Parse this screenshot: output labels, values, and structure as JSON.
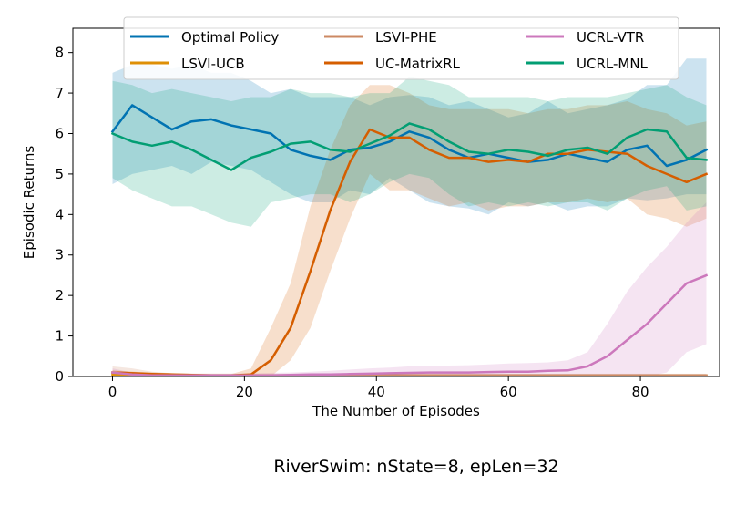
{
  "chart_data": {
    "type": "line",
    "title": "",
    "caption": "RiverSwim: nState=8, epLen=32",
    "xlabel": "The Number of Episodes",
    "ylabel": "Episodic Returns",
    "xlim": [
      -6,
      92
    ],
    "ylim": [
      0,
      8.6
    ],
    "xticks": [
      0,
      20,
      40,
      60,
      80
    ],
    "yticks": [
      0,
      1,
      2,
      3,
      4,
      5,
      6,
      7,
      8
    ],
    "x_start": 0,
    "x_step": 3,
    "legend_position": "top-center",
    "series": [
      {
        "name": "Optimal Policy",
        "color": "#0173b2",
        "values": [
          6.05,
          6.7,
          6.4,
          6.1,
          6.3,
          6.35,
          6.2,
          6.1,
          6.0,
          5.6,
          5.45,
          5.35,
          5.6,
          5.65,
          5.8,
          6.05,
          5.9,
          5.6,
          5.4,
          5.5,
          5.4,
          5.3,
          5.35,
          5.5,
          5.4,
          5.3,
          5.6,
          5.7,
          5.2,
          5.35,
          5.6
        ],
        "upper": [
          7.5,
          7.7,
          7.7,
          7.6,
          7.7,
          7.5,
          7.5,
          7.3,
          7.0,
          7.1,
          6.9,
          6.9,
          6.9,
          6.7,
          6.9,
          6.95,
          6.9,
          6.7,
          6.8,
          6.6,
          6.4,
          6.5,
          6.8,
          6.5,
          6.6,
          6.7,
          6.85,
          7.2,
          7.2,
          7.85,
          7.85
        ],
        "lower": [
          4.75,
          5.0,
          5.1,
          5.2,
          5.0,
          5.3,
          5.2,
          5.1,
          4.8,
          4.5,
          4.3,
          4.3,
          4.6,
          4.5,
          4.9,
          4.6,
          4.3,
          4.2,
          4.15,
          4.0,
          4.3,
          4.2,
          4.3,
          4.1,
          4.2,
          4.2,
          4.4,
          4.35,
          4.4,
          4.5,
          4.5
        ]
      },
      {
        "name": "LSVI-UCB",
        "color": "#de8f05",
        "values": [
          0.05,
          0.04,
          0.04,
          0.03,
          0.03,
          0.03,
          0.03,
          0.03,
          0.03,
          0.03,
          0.03,
          0.03,
          0.03,
          0.03,
          0.03,
          0.03,
          0.03,
          0.03,
          0.03,
          0.03,
          0.03,
          0.03,
          0.03,
          0.03,
          0.03,
          0.03,
          0.03,
          0.03,
          0.03,
          0.03,
          0.03
        ],
        "upper": [
          0.15,
          0.12,
          0.1,
          0.08,
          0.07,
          0.07,
          0.07,
          0.06,
          0.06,
          0.06,
          0.06,
          0.06,
          0.06,
          0.06,
          0.06,
          0.06,
          0.06,
          0.06,
          0.06,
          0.06,
          0.06,
          0.06,
          0.06,
          0.06,
          0.06,
          0.06,
          0.06,
          0.06,
          0.06,
          0.06,
          0.06
        ],
        "lower": [
          0,
          0,
          0,
          0,
          0,
          0,
          0,
          0,
          0,
          0,
          0,
          0,
          0,
          0,
          0,
          0,
          0,
          0,
          0,
          0,
          0,
          0,
          0,
          0,
          0,
          0,
          0,
          0,
          0,
          0,
          0
        ]
      },
      {
        "name": "LSVI-PHE",
        "color": "#cc8963",
        "values": [
          0.1,
          0.08,
          0.05,
          0.04,
          0.03,
          0.03,
          0.03,
          0.03,
          0.03,
          0.03,
          0.03,
          0.03,
          0.03,
          0.03,
          0.03,
          0.03,
          0.03,
          0.03,
          0.03,
          0.03,
          0.03,
          0.03,
          0.03,
          0.03,
          0.03,
          0.03,
          0.03,
          0.03,
          0.03,
          0.03,
          0.03
        ],
        "upper": [
          0.25,
          0.2,
          0.12,
          0.08,
          0.07,
          0.07,
          0.07,
          0.07,
          0.07,
          0.07,
          0.07,
          0.07,
          0.07,
          0.07,
          0.07,
          0.07,
          0.07,
          0.07,
          0.07,
          0.07,
          0.07,
          0.07,
          0.07,
          0.07,
          0.07,
          0.07,
          0.07,
          0.07,
          0.07,
          0.07,
          0.07
        ],
        "lower": [
          0,
          0,
          0,
          0,
          0,
          0,
          0,
          0,
          0,
          0,
          0,
          0,
          0,
          0,
          0,
          0,
          0,
          0,
          0,
          0,
          0,
          0,
          0,
          0,
          0,
          0,
          0,
          0,
          0,
          0,
          0
        ]
      },
      {
        "name": "UC-MatrixRL",
        "color": "#d55e00",
        "values": [
          0.1,
          0.08,
          0.06,
          0.05,
          0.04,
          0.03,
          0.03,
          0.05,
          0.4,
          1.2,
          2.6,
          4.1,
          5.3,
          6.1,
          5.9,
          5.9,
          5.6,
          5.4,
          5.4,
          5.3,
          5.35,
          5.3,
          5.5,
          5.5,
          5.6,
          5.55,
          5.5,
          5.2,
          5.0,
          4.8,
          5.0
        ],
        "upper": [
          0.15,
          0.12,
          0.1,
          0.08,
          0.07,
          0.06,
          0.06,
          0.2,
          1.2,
          2.3,
          4.2,
          5.6,
          6.7,
          7.2,
          7.2,
          7.0,
          6.7,
          6.6,
          6.6,
          6.6,
          6.6,
          6.5,
          6.6,
          6.6,
          6.7,
          6.7,
          6.8,
          6.6,
          6.5,
          6.2,
          6.3
        ],
        "lower": [
          0.05,
          0.04,
          0.03,
          0.02,
          0.02,
          0.01,
          0.01,
          0.0,
          0.0,
          0.4,
          1.2,
          2.6,
          3.9,
          5.0,
          4.6,
          4.6,
          4.4,
          4.2,
          4.3,
          4.1,
          4.2,
          4.2,
          4.3,
          4.3,
          4.4,
          4.3,
          4.4,
          4.0,
          3.9,
          3.7,
          3.9
        ]
      },
      {
        "name": "UCRL-VTR",
        "color": "#cc78bc",
        "values": [
          0.1,
          0.05,
          0.03,
          0.03,
          0.03,
          0.03,
          0.03,
          0.03,
          0.03,
          0.04,
          0.05,
          0.05,
          0.06,
          0.07,
          0.08,
          0.09,
          0.1,
          0.1,
          0.1,
          0.11,
          0.12,
          0.12,
          0.14,
          0.15,
          0.25,
          0.5,
          0.9,
          1.3,
          1.8,
          2.3,
          2.5
        ],
        "upper": [
          0.2,
          0.1,
          0.07,
          0.07,
          0.07,
          0.07,
          0.07,
          0.08,
          0.09,
          0.1,
          0.12,
          0.14,
          0.17,
          0.2,
          0.22,
          0.25,
          0.27,
          0.27,
          0.28,
          0.3,
          0.32,
          0.33,
          0.35,
          0.4,
          0.6,
          1.3,
          2.1,
          2.7,
          3.2,
          3.8,
          4.3
        ],
        "lower": [
          0,
          0,
          0,
          0,
          0,
          0,
          0,
          0,
          0,
          0,
          0,
          0,
          0,
          0,
          0,
          0,
          0,
          0,
          0,
          0,
          0,
          0,
          0,
          0,
          0,
          0,
          0,
          0,
          0.1,
          0.6,
          0.8
        ]
      },
      {
        "name": "UCRL-MNL",
        "color": "#029e73",
        "values": [
          6.0,
          5.8,
          5.7,
          5.8,
          5.6,
          5.35,
          5.1,
          5.4,
          5.55,
          5.75,
          5.8,
          5.6,
          5.55,
          5.75,
          5.95,
          6.25,
          6.1,
          5.8,
          5.55,
          5.5,
          5.6,
          5.55,
          5.45,
          5.6,
          5.65,
          5.5,
          5.9,
          6.1,
          6.05,
          5.4,
          5.35
        ],
        "upper": [
          7.3,
          7.2,
          7.0,
          7.1,
          7.0,
          6.9,
          6.8,
          6.9,
          6.9,
          7.1,
          7.0,
          7.0,
          6.9,
          7.0,
          7.0,
          7.4,
          7.3,
          7.2,
          6.9,
          6.9,
          6.9,
          6.9,
          6.8,
          6.9,
          6.9,
          6.9,
          7.0,
          7.1,
          7.2,
          6.9,
          6.7
        ],
        "lower": [
          4.9,
          4.6,
          4.4,
          4.2,
          4.2,
          4.0,
          3.8,
          3.7,
          4.3,
          4.4,
          4.5,
          4.5,
          4.3,
          4.5,
          4.8,
          5.0,
          4.9,
          4.5,
          4.2,
          4.3,
          4.2,
          4.3,
          4.2,
          4.3,
          4.3,
          4.1,
          4.4,
          4.6,
          4.7,
          4.1,
          4.2
        ]
      }
    ]
  }
}
